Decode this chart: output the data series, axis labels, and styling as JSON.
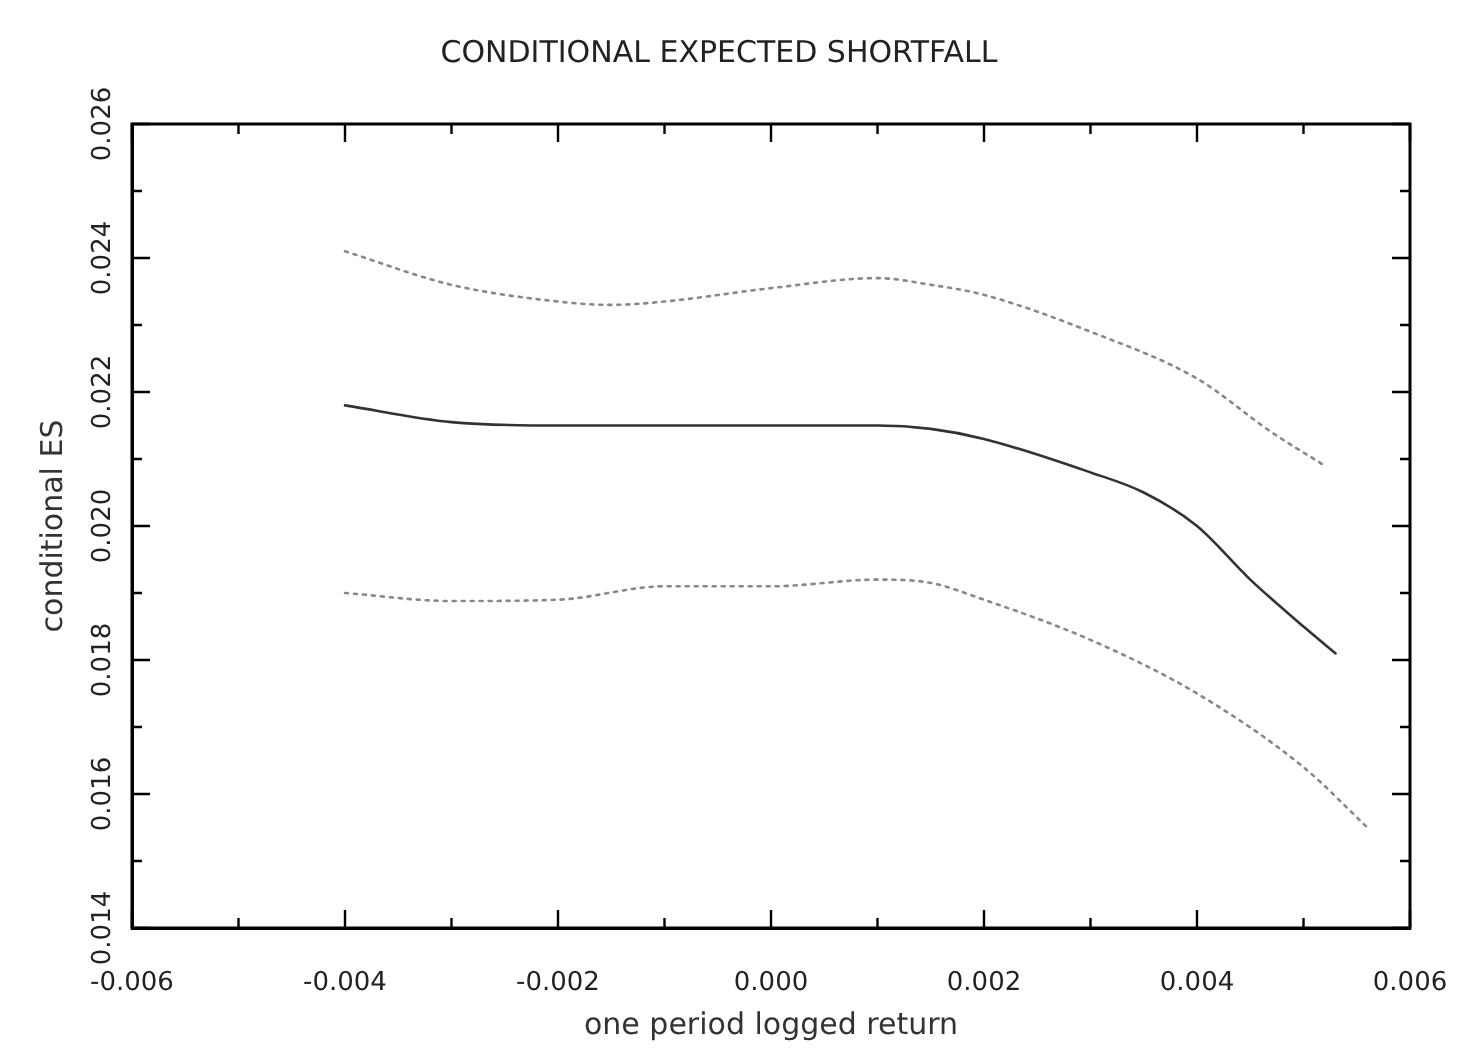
{
  "chart_data": {
    "type": "line",
    "title": "CONDITIONAL EXPECTED SHORTFALL",
    "xlabel": "one period logged return",
    "ylabel": "conditional ES",
    "xlim": [
      -0.006,
      0.006
    ],
    "xticks": [
      {
        "value": -0.006,
        "label": "-0.006"
      },
      {
        "value": -0.005,
        "label": null
      },
      {
        "value": -0.004,
        "label": "-0.004"
      },
      {
        "value": -0.003,
        "label": null
      },
      {
        "value": -0.002,
        "label": "-0.002"
      },
      {
        "value": -0.001,
        "label": null
      },
      {
        "value": 0,
        "label": "0.000"
      },
      {
        "value": 0.001,
        "label": null
      },
      {
        "value": 0.002,
        "label": "0.002"
      },
      {
        "value": 0.003,
        "label": null
      },
      {
        "value": 0.004,
        "label": "0.004"
      },
      {
        "value": 0.005,
        "label": null
      },
      {
        "value": 0.006,
        "label": "0.006"
      }
    ],
    "ylim": [
      0.014,
      0.026
    ],
    "yticks": [
      {
        "value": 0.014,
        "label": "0.014"
      },
      {
        "value": 0.015,
        "label": null
      },
      {
        "value": 0.016,
        "label": "0.016"
      },
      {
        "value": 0.017,
        "label": null
      },
      {
        "value": 0.018,
        "label": "0.018"
      },
      {
        "value": 0.019,
        "label": null
      },
      {
        "value": 0.02,
        "label": "0.020"
      },
      {
        "value": 0.021,
        "label": null
      },
      {
        "value": 0.022,
        "label": "0.022"
      },
      {
        "value": 0.023,
        "label": null
      },
      {
        "value": 0.024,
        "label": "0.024"
      },
      {
        "value": 0.025,
        "label": null
      },
      {
        "value": 0.026,
        "label": "0.026"
      }
    ],
    "grid": false,
    "legend": false,
    "marker": "none",
    "series": [
      {
        "color": "#888888",
        "line_style": "dotted",
        "x": [
          -0.004,
          -0.003,
          -0.002,
          -0.0015,
          -0.001,
          0,
          0.001,
          0.0015,
          0.002,
          0.003,
          0.004,
          0.0047,
          0.0052
        ],
        "values": [
          0.0241,
          0.0236,
          0.02335,
          0.0233,
          0.02335,
          0.02355,
          0.0237,
          0.0236,
          0.02345,
          0.0229,
          0.0222,
          0.0214,
          0.0209
        ]
      },
      {
        "color": "#333333",
        "line_style": "solid",
        "x": [
          -0.004,
          -0.003,
          -0.002,
          0,
          0.001,
          0.0015,
          0.002,
          0.003,
          0.0035,
          0.004,
          0.0045,
          0.005,
          0.0053
        ],
        "values": [
          0.0218,
          0.02155,
          0.0215,
          0.0215,
          0.0215,
          0.02145,
          0.0213,
          0.0208,
          0.0205,
          0.02,
          0.0192,
          0.0185,
          0.0181
        ]
      },
      {
        "color": "#888888",
        "line_style": "dotted",
        "x": [
          -0.004,
          -0.003,
          -0.002,
          -0.001,
          0,
          0.001,
          0.0015,
          0.002,
          0.003,
          0.004,
          0.005,
          0.0056
        ],
        "values": [
          0.019,
          0.01888,
          0.0189,
          0.0191,
          0.0191,
          0.0192,
          0.01915,
          0.0189,
          0.0183,
          0.0175,
          0.0164,
          0.0155
        ]
      }
    ]
  }
}
